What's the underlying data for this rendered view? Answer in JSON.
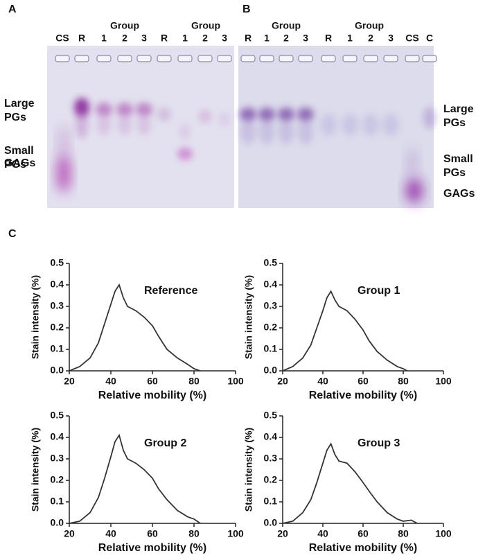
{
  "panel_labels": [
    "A",
    "B",
    "C"
  ],
  "gels": [
    {
      "group_labels": [
        "Group",
        "Group"
      ],
      "lanes": [
        "CS",
        "R",
        "1",
        "2",
        "3",
        "R",
        "1",
        "2",
        "3"
      ],
      "band_labels": [
        [
          "Large",
          "PGs"
        ],
        [
          "Small",
          "PGs"
        ],
        [
          "GAGs"
        ]
      ]
    },
    {
      "group_labels": [
        "Group",
        "Group"
      ],
      "lanes": [
        "R",
        "1",
        "2",
        "3",
        "R",
        "1",
        "2",
        "3",
        "CS",
        "C"
      ],
      "band_labels": [
        [
          "Large",
          "PGs"
        ],
        [
          "Small",
          "PGs"
        ],
        [
          "GAGs"
        ]
      ]
    }
  ],
  "chart_data": [
    {
      "type": "line",
      "annotation": "Reference",
      "x_label": "Relative mobility (%)",
      "y_label": "Stain intensity (%)",
      "x": [
        20,
        25,
        30,
        34,
        37,
        40,
        42,
        44,
        46,
        48,
        52,
        56,
        60,
        63,
        67,
        72,
        77,
        80,
        83
      ],
      "values": [
        0,
        0.02,
        0.06,
        0.13,
        0.22,
        0.31,
        0.37,
        0.4,
        0.34,
        0.3,
        0.28,
        0.25,
        0.21,
        0.16,
        0.1,
        0.06,
        0.03,
        0.01,
        0
      ],
      "color": "#333333",
      "xlim": [
        20,
        100
      ],
      "ylim": [
        0,
        0.5
      ],
      "xticks": [
        20,
        40,
        60,
        80,
        100
      ],
      "yticks": [
        {
          "value": 0,
          "label": "0.0"
        },
        0.1,
        0.2,
        0.3,
        0.4,
        0.5
      ],
      "grid": false
    },
    {
      "type": "line",
      "annotation": "Group 1",
      "x_label": "Relative mobility (%)",
      "y_label": "Stain intensity (%)",
      "x": [
        20,
        25,
        30,
        34,
        37,
        40,
        42,
        44,
        46,
        48,
        52,
        56,
        60,
        63,
        67,
        72,
        77,
        80,
        82
      ],
      "values": [
        0,
        0.02,
        0.06,
        0.12,
        0.2,
        0.28,
        0.34,
        0.37,
        0.33,
        0.3,
        0.28,
        0.24,
        0.19,
        0.14,
        0.09,
        0.05,
        0.02,
        0.01,
        0
      ],
      "color": "#333333",
      "xlim": [
        20,
        100
      ],
      "ylim": [
        0,
        0.5
      ],
      "xticks": [
        20,
        40,
        60,
        80,
        100
      ],
      "yticks": [
        {
          "value": 0,
          "label": "0.0"
        },
        0.1,
        0.2,
        0.3,
        0.4,
        0.5
      ],
      "grid": false
    },
    {
      "type": "line",
      "annotation": "Group 2",
      "x_label": "Relative mobility (%)",
      "y_label": "Stain intensity (%)",
      "x": [
        20,
        25,
        30,
        34,
        37,
        40,
        42,
        44,
        46,
        48,
        52,
        56,
        60,
        63,
        67,
        72,
        77,
        80,
        83
      ],
      "values": [
        0,
        0.01,
        0.05,
        0.12,
        0.21,
        0.31,
        0.38,
        0.41,
        0.34,
        0.3,
        0.28,
        0.25,
        0.21,
        0.16,
        0.11,
        0.06,
        0.03,
        0.02,
        0
      ],
      "color": "#333333",
      "xlim": [
        20,
        100
      ],
      "ylim": [
        0,
        0.5
      ],
      "xticks": [
        20,
        40,
        60,
        80,
        100
      ],
      "yticks": [
        {
          "value": 0,
          "label": "0.0"
        },
        0.1,
        0.2,
        0.3,
        0.4,
        0.5
      ],
      "grid": false
    },
    {
      "type": "line",
      "annotation": "Group 3",
      "x_label": "Relative mobility (%)",
      "y_label": "Stain intensity (%)",
      "x": [
        20,
        25,
        30,
        34,
        37,
        40,
        42,
        44,
        46,
        48,
        52,
        56,
        60,
        63,
        67,
        72,
        77,
        80,
        84,
        87
      ],
      "values": [
        0,
        0.01,
        0.05,
        0.11,
        0.19,
        0.28,
        0.34,
        0.37,
        0.32,
        0.29,
        0.28,
        0.24,
        0.19,
        0.15,
        0.1,
        0.05,
        0.02,
        0.01,
        0.015,
        0
      ],
      "color": "#333333",
      "xlim": [
        20,
        100
      ],
      "ylim": [
        0,
        0.5
      ],
      "xticks": [
        20,
        40,
        60,
        80,
        100
      ],
      "yticks": [
        {
          "value": 0,
          "label": "0.0"
        },
        0.1,
        0.2,
        0.3,
        0.4,
        0.5
      ],
      "grid": false
    }
  ]
}
